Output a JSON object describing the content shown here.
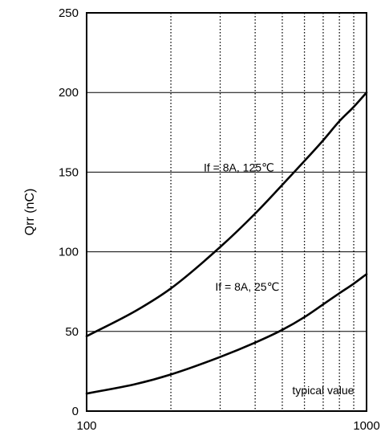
{
  "chart_data": {
    "type": "line",
    "title": "",
    "xlabel": "",
    "ylabel": "Qrr (nC)",
    "x_scale": "log",
    "xlim": [
      100,
      1000
    ],
    "ylim": [
      0,
      250
    ],
    "x_ticks": [
      100,
      1000
    ],
    "x_tick_labels": [
      "100",
      "1000"
    ],
    "x_minor_grid": [
      200,
      300,
      400,
      500,
      600,
      700,
      800,
      900
    ],
    "y_ticks": [
      0,
      50,
      100,
      150,
      200,
      250
    ],
    "y_tick_labels": [
      "0",
      "50",
      "100",
      "150",
      "200",
      "250"
    ],
    "grid": true,
    "series": [
      {
        "name": "If = 8A, 125℃",
        "x": [
          100,
          150,
          200,
          300,
          400,
          500,
          600,
          700,
          800,
          900,
          1000
        ],
        "y": [
          47,
          63,
          77,
          103,
          124,
          142,
          157,
          170,
          182,
          191,
          200
        ]
      },
      {
        "name": "If = 8A, 25℃",
        "x": [
          100,
          150,
          200,
          300,
          400,
          500,
          600,
          700,
          800,
          900,
          1000
        ],
        "y": [
          11,
          17,
          23,
          34,
          43,
          51,
          59,
          67,
          74,
          80,
          86
        ]
      }
    ],
    "annotations": [
      {
        "text": "If = 8A, 125℃",
        "x": 350,
        "y": 153
      },
      {
        "text": "If = 8A, 25℃",
        "x": 375,
        "y": 78
      },
      {
        "text": "typical value",
        "x": 700,
        "y": 13
      }
    ],
    "line_color": "#000000",
    "grid_color": "#000000"
  }
}
